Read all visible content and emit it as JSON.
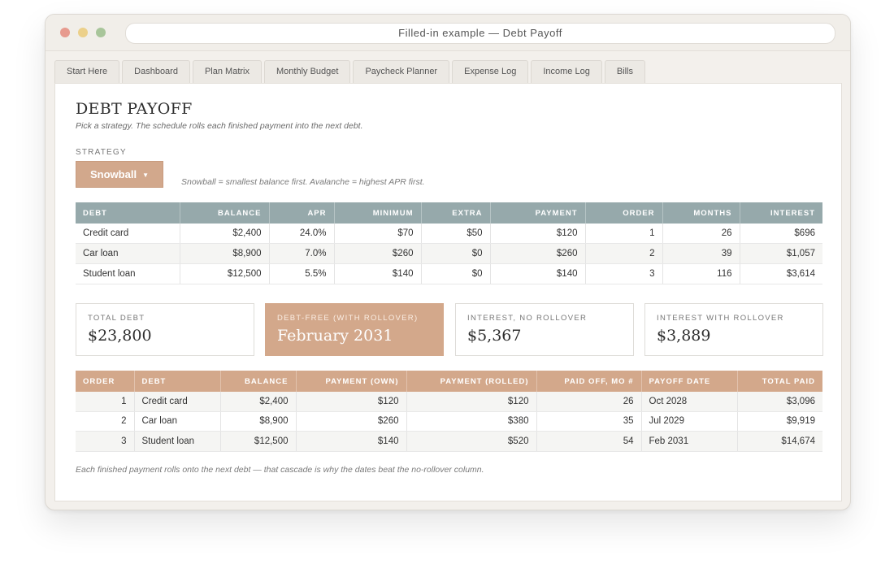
{
  "window": {
    "title": "Filled-in example — Debt Payoff"
  },
  "tabs": [
    "Start Here",
    "Dashboard",
    "Plan Matrix",
    "Monthly Budget",
    "Paycheck Planner",
    "Expense Log",
    "Income Log",
    "Bills"
  ],
  "page": {
    "title": "DEBT PAYOFF",
    "subtitle": "Pick a strategy. The schedule rolls each finished payment into the next debt."
  },
  "strategy": {
    "label": "STRATEGY",
    "selected": "Snowball",
    "note": "Snowball = smallest balance first. Avalanche = highest APR first."
  },
  "debts": {
    "headers": [
      "DEBT",
      "BALANCE",
      "APR",
      "MINIMUM",
      "EXTRA",
      "PAYMENT",
      "ORDER",
      "MONTHS",
      "INTEREST"
    ],
    "rows": [
      [
        "Credit card",
        "$2,400",
        "24.0%",
        "$70",
        "$50",
        "$120",
        "1",
        "26",
        "$696"
      ],
      [
        "Car loan",
        "$8,900",
        "7.0%",
        "$260",
        "$0",
        "$260",
        "2",
        "39",
        "$1,057"
      ],
      [
        "Student loan",
        "$12,500",
        "5.5%",
        "$140",
        "$0",
        "$140",
        "3",
        "116",
        "$3,614"
      ]
    ]
  },
  "summary": [
    {
      "label": "TOTAL DEBT",
      "value": "$23,800"
    },
    {
      "label": "DEBT-FREE (WITH ROLLOVER)",
      "value": "February 2031"
    },
    {
      "label": "INTEREST, NO ROLLOVER",
      "value": "$5,367"
    },
    {
      "label": "INTEREST WITH ROLLOVER",
      "value": "$3,889"
    }
  ],
  "schedule": {
    "headers": [
      "ORDER",
      "DEBT",
      "BALANCE",
      "PAYMENT (OWN)",
      "PAYMENT (ROLLED)",
      "PAID OFF, MO #",
      "PAYOFF DATE",
      "TOTAL PAID"
    ],
    "rows": [
      [
        "1",
        "Credit card",
        "$2,400",
        "$120",
        "$120",
        "26",
        "Oct 2028",
        "$3,096"
      ],
      [
        "2",
        "Car loan",
        "$8,900",
        "$260",
        "$380",
        "35",
        "Jul 2029",
        "$9,919"
      ],
      [
        "3",
        "Student loan",
        "$12,500",
        "$140",
        "$520",
        "54",
        "Feb 2031",
        "$14,674"
      ]
    ]
  },
  "footnote": "Each finished payment rolls onto the next debt — that cascade is why the dates beat the no-rollover column."
}
